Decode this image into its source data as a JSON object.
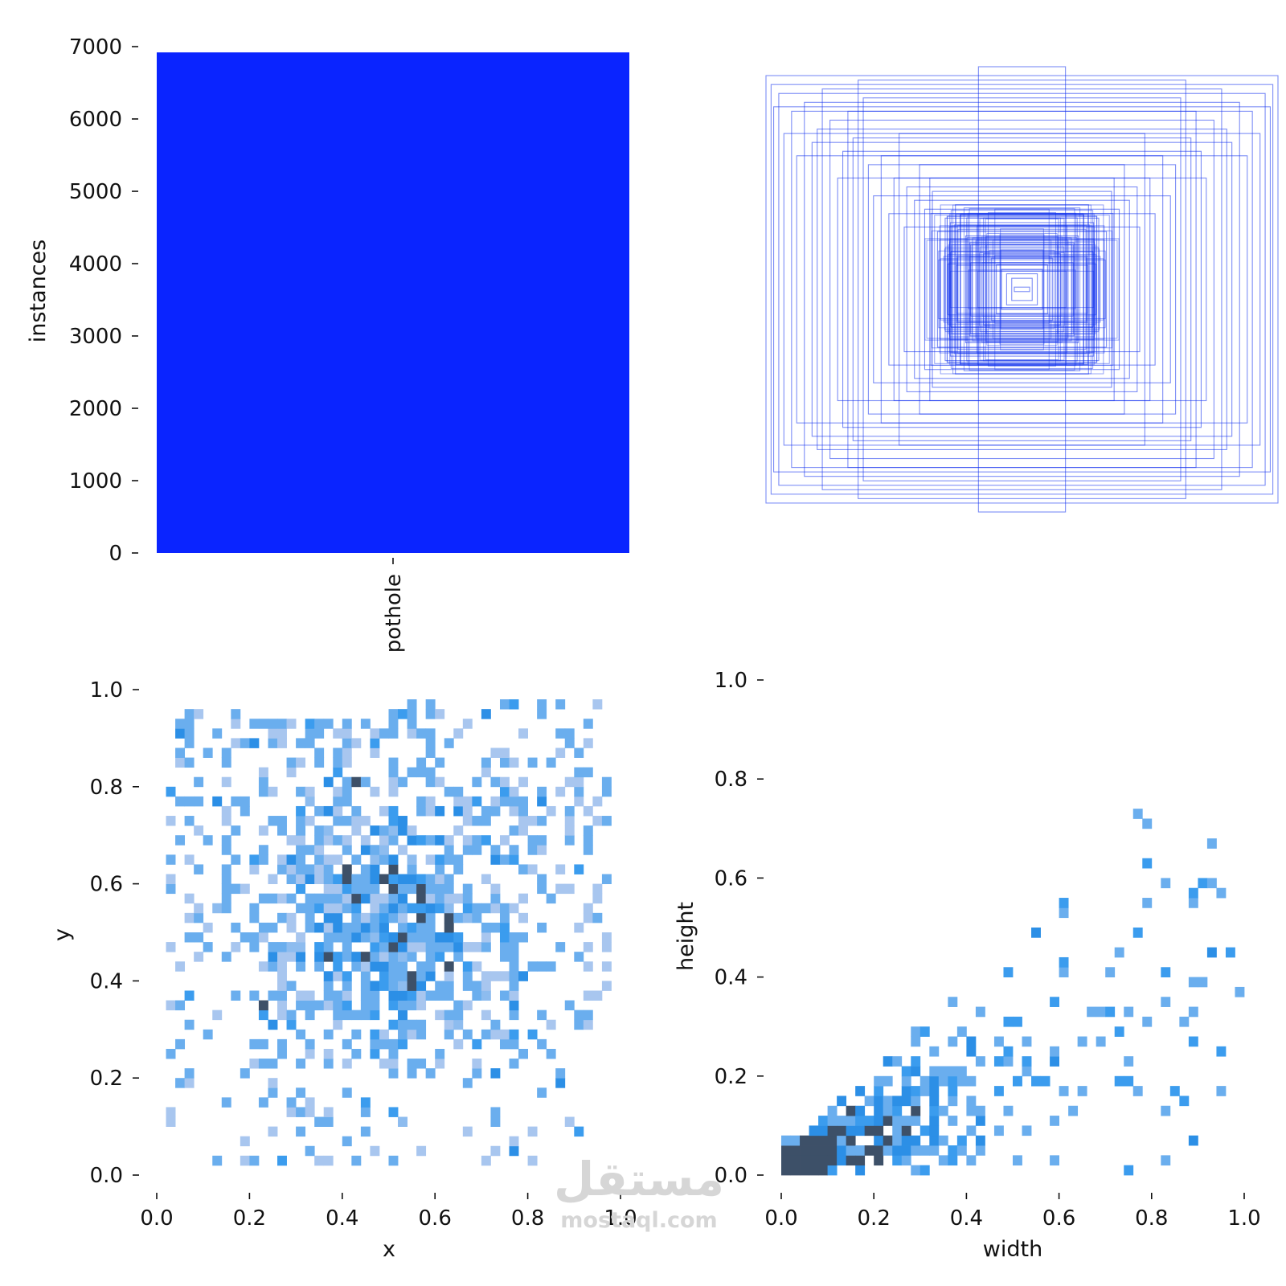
{
  "chart_data": [
    {
      "type": "bar",
      "categories": [
        "pothole"
      ],
      "values": [
        6920
      ],
      "color": "#0a24ff",
      "ylabel": "instances",
      "xlabel": "",
      "ylim": [
        0,
        7000
      ],
      "yticks": [
        "0",
        "1000",
        "2000",
        "3000",
        "4000",
        "5000",
        "6000",
        "7000"
      ]
    },
    {
      "type": "other",
      "description_role": "overlaid bounding boxes centered at image center",
      "color": "#1030ee",
      "boxes_wh": [
        [
          0.17,
          1.0
        ],
        [
          1.0,
          0.96
        ],
        [
          0.98,
          0.92
        ],
        [
          0.95,
          0.88
        ],
        [
          0.9,
          0.8
        ],
        [
          0.85,
          0.84
        ],
        [
          0.8,
          0.72
        ],
        [
          0.75,
          0.76
        ],
        [
          0.7,
          0.62
        ],
        [
          0.66,
          0.68
        ],
        [
          0.6,
          0.56
        ],
        [
          0.55,
          0.6
        ],
        [
          0.5,
          0.5
        ],
        [
          0.45,
          0.46
        ],
        [
          0.42,
          0.4
        ],
        [
          0.38,
          0.36
        ],
        [
          0.35,
          0.44
        ],
        [
          0.3,
          0.32
        ],
        [
          0.28,
          0.3
        ],
        [
          0.25,
          0.27
        ],
        [
          0.22,
          0.24
        ],
        [
          0.2,
          0.2
        ],
        [
          0.18,
          0.22
        ],
        [
          0.15,
          0.16
        ],
        [
          0.12,
          0.14
        ],
        [
          0.1,
          0.11
        ],
        [
          0.08,
          0.09
        ],
        [
          0.06,
          0.07
        ],
        [
          0.04,
          0.05
        ],
        [
          0.03,
          0.01
        ],
        [
          0.88,
          0.6
        ],
        [
          0.62,
          0.86
        ],
        [
          0.72,
          0.5
        ],
        [
          0.48,
          0.7
        ],
        [
          0.93,
          0.7
        ],
        [
          0.78,
          0.9
        ],
        [
          0.58,
          0.42
        ],
        [
          0.4,
          0.56
        ],
        [
          0.33,
          0.26
        ],
        [
          0.26,
          0.38
        ],
        [
          0.68,
          0.8
        ],
        [
          0.82,
          0.66
        ],
        [
          0.52,
          0.34
        ],
        [
          0.36,
          0.5
        ],
        [
          0.97,
          0.82
        ],
        [
          0.64,
          0.94
        ],
        [
          0.46,
          0.28
        ],
        [
          0.24,
          0.34
        ],
        [
          0.14,
          0.2
        ],
        [
          0.2,
          0.12
        ]
      ]
    },
    {
      "type": "heatmap",
      "xlabel": "x",
      "ylabel": "y",
      "xlim": [
        0,
        1
      ],
      "ylim": [
        0,
        1
      ],
      "xticks": [
        "0.0",
        "0.2",
        "0.4",
        "0.6",
        "0.8",
        "1.0"
      ],
      "yticks": [
        "0.0",
        "0.2",
        "0.4",
        "0.6",
        "0.8",
        "1.0"
      ],
      "bins": 50,
      "distribution": {
        "center": [
          0.5,
          0.52
        ],
        "spread": [
          0.14,
          0.16
        ],
        "range_x": [
          0.01,
          0.99
        ],
        "range_y": [
          0.01,
          0.98
        ]
      },
      "colors": [
        "#a8c6ef",
        "#8dbcef",
        "#6aaeee",
        "#3b9cee",
        "#2c8fe6",
        "#3d5068"
      ]
    },
    {
      "type": "heatmap",
      "xlabel": "width",
      "ylabel": "height",
      "xlim": [
        0,
        1
      ],
      "ylim": [
        0,
        1
      ],
      "xticks": [
        "0.0",
        "0.2",
        "0.4",
        "0.6",
        "0.8",
        "1.0"
      ],
      "yticks": [
        "0.0",
        "0.2",
        "0.4",
        "0.6",
        "0.8",
        "1.0"
      ],
      "bins": 50,
      "distribution": {
        "peak": [
          0.06,
          0.04
        ],
        "trend": "height rises roughly linearly with width",
        "range_x": [
          0.01,
          0.99
        ],
        "range_y": [
          0.0,
          0.97
        ]
      },
      "colors": [
        "#a8c6ef",
        "#8dbcef",
        "#6aaeee",
        "#3b9cee",
        "#2c8fe6",
        "#3d5068"
      ]
    }
  ],
  "watermark": {
    "arabic": "مستقل",
    "latin": "mostaql.com"
  }
}
